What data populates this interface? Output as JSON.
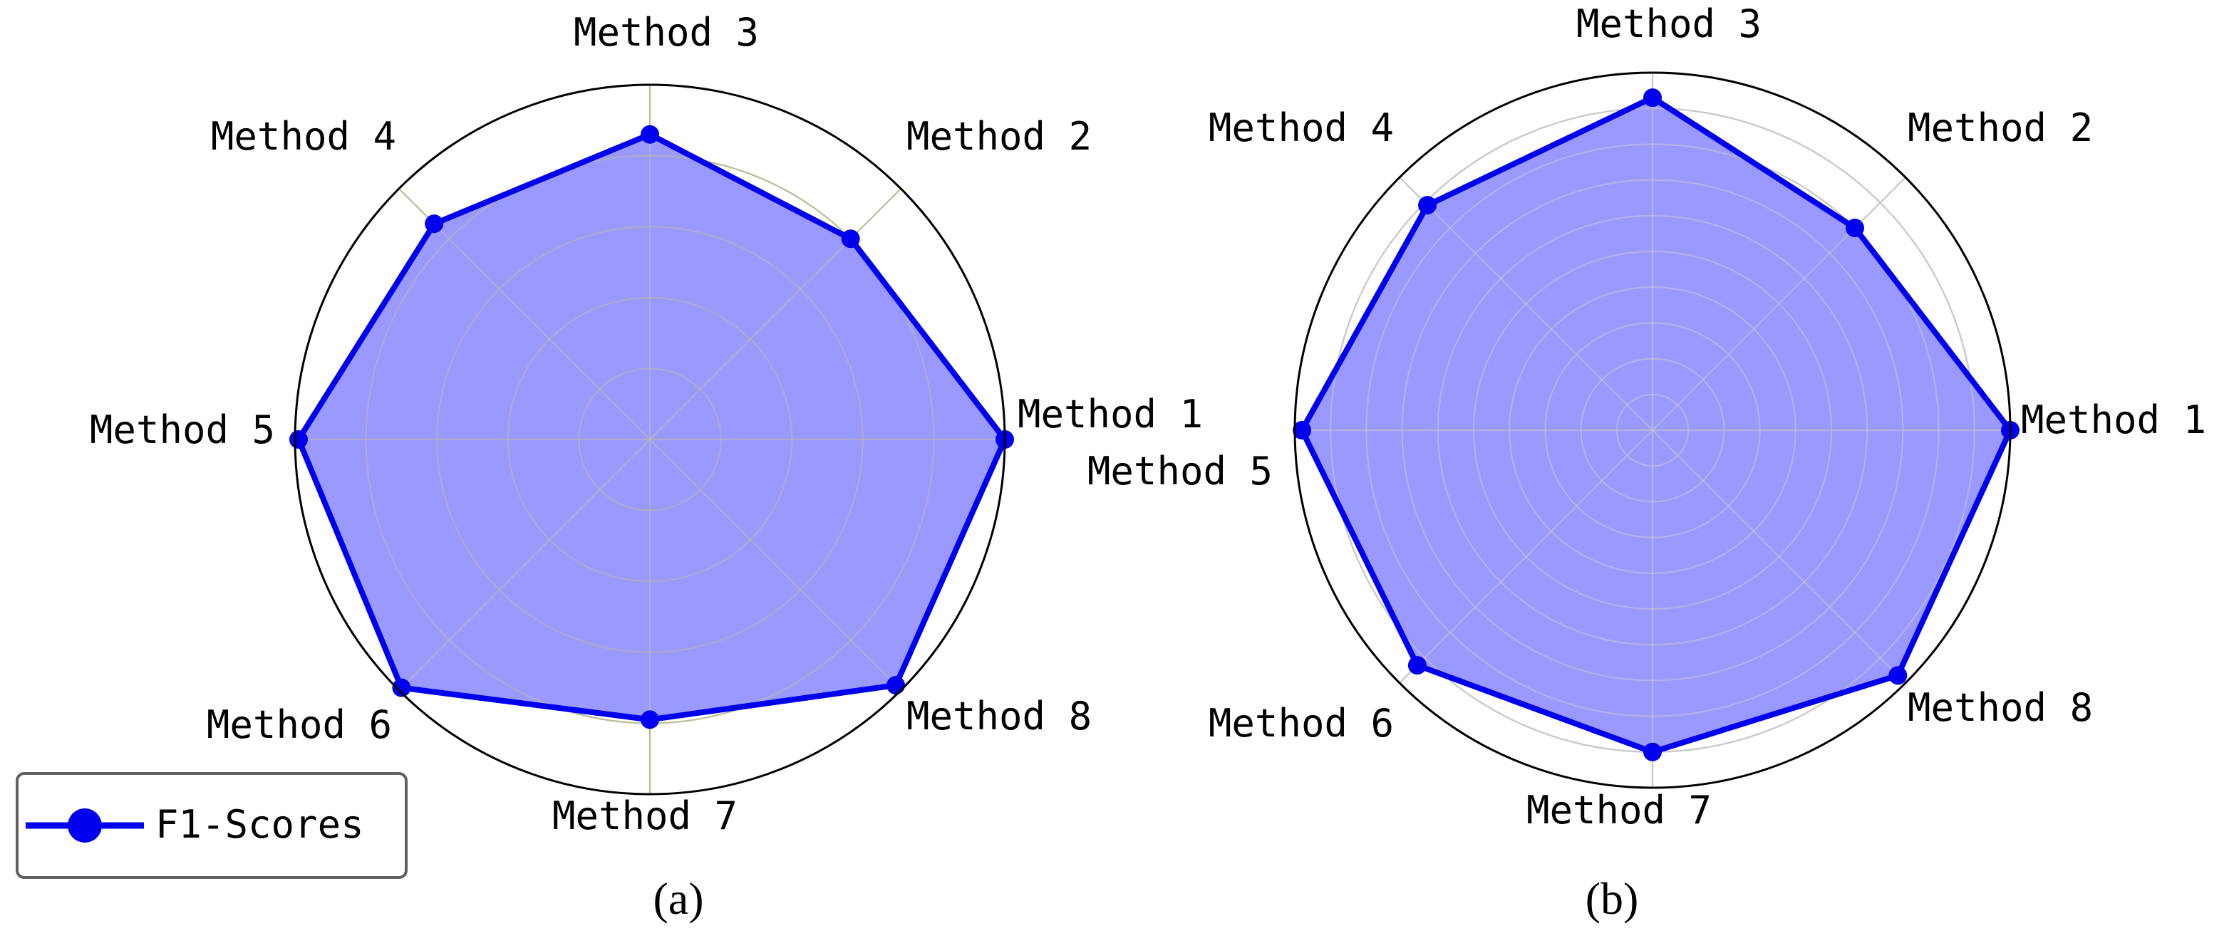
{
  "colors": {
    "series": "#0000ee",
    "fill": "#9999ff",
    "grid": "#c8c8c8",
    "grid_a": "#bdbd9a",
    "outline": "#000000",
    "legend_border": "#606060"
  },
  "legend": {
    "label": "F1-Scores",
    "placement": "bottom-left"
  },
  "chart_data": [
    {
      "type": "radar",
      "caption": "(a)",
      "categories": [
        "Method 1",
        "Method 2",
        "Method 3",
        "Method 4",
        "Method 5",
        "Method 6",
        "Method 7",
        "Method 8"
      ],
      "series": [
        {
          "name": "F1-Scores",
          "values": [
            1.0,
            0.8,
            0.86,
            0.86,
            0.99,
            0.99,
            0.79,
            0.98
          ]
        }
      ],
      "rlim": [
        0,
        1
      ],
      "rings": 5,
      "grid": true
    },
    {
      "type": "radar",
      "caption": "(b)",
      "categories": [
        "Method 1",
        "Method 2",
        "Method 3",
        "Method 4",
        "Method 5",
        "Method 6",
        "Method 7",
        "Method 8"
      ],
      "series": [
        {
          "name": "F1-Scores",
          "values": [
            1.0,
            0.8,
            0.93,
            0.89,
            0.98,
            0.93,
            0.9,
            0.97
          ]
        }
      ],
      "rlim": [
        0,
        1
      ],
      "rings": 10,
      "grid": true
    }
  ]
}
